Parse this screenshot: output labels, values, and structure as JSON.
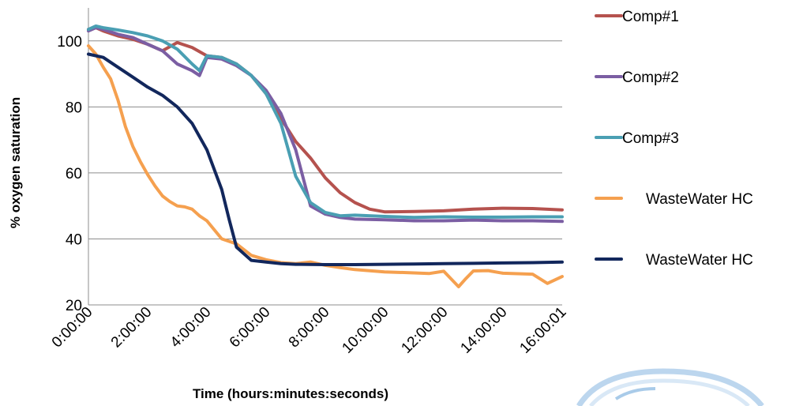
{
  "chart_data": {
    "type": "line",
    "xlabel": "Time (hours:minutes:seconds)",
    "ylabel": "% oxygen saturation",
    "ylim": [
      20,
      110
    ],
    "yticks": [
      20,
      40,
      60,
      80,
      100
    ],
    "xlim_hours": [
      0,
      16
    ],
    "xtick_labels": [
      "0:00:00",
      "2:00:00",
      "4:00:00",
      "6:00:00",
      "8:00:00",
      "10:00:00",
      "12:00:00",
      "14:00:00",
      "16:00:01"
    ],
    "grid": true,
    "legend_position": "right",
    "series": [
      {
        "name": "Comp#1",
        "color": "#b5524e",
        "x": [
          0,
          0.25,
          0.5,
          1,
          1.5,
          2,
          2.5,
          3,
          3.5,
          4,
          4.5,
          5,
          5.5,
          6,
          6.5,
          7,
          7.5,
          8,
          8.5,
          9,
          9.5,
          10,
          11,
          12,
          13,
          14,
          15,
          16
        ],
        "y": [
          103.5,
          104,
          103,
          101.5,
          100.5,
          99,
          97,
          99.5,
          98,
          95.5,
          95,
          93,
          89.5,
          84,
          76.5,
          69.5,
          64.5,
          58.5,
          54,
          51,
          49,
          48.2,
          48.3,
          48.5,
          49,
          49.3,
          49.2,
          48.8
        ]
      },
      {
        "name": "Comp#2",
        "color": "#7b5ea3",
        "x": [
          0,
          0.25,
          0.5,
          1,
          1.5,
          2,
          2.5,
          3,
          3.5,
          3.75,
          4,
          4.5,
          5,
          5.5,
          6,
          6.5,
          7,
          7.5,
          8,
          8.5,
          9,
          10,
          11,
          12,
          13,
          14,
          15,
          16
        ],
        "y": [
          103,
          104,
          103.5,
          102,
          101,
          99,
          97,
          93,
          91,
          89.5,
          95,
          94.5,
          92.5,
          89.5,
          85,
          78,
          67,
          50,
          47.5,
          46.5,
          46,
          45.8,
          45.5,
          45.5,
          45.7,
          45.5,
          45.5,
          45.3
        ]
      },
      {
        "name": "Comp#3",
        "color": "#4a9fb3",
        "x": [
          0,
          0.25,
          0.5,
          1,
          1.5,
          2,
          2.5,
          3,
          3.5,
          3.75,
          4,
          4.5,
          5,
          5.5,
          6,
          6.5,
          7,
          7.5,
          8,
          8.5,
          9,
          10,
          11,
          12,
          13,
          14,
          15,
          16
        ],
        "y": [
          103.5,
          104.5,
          104,
          103.3,
          102.5,
          101.5,
          100,
          97.5,
          93,
          91,
          95.5,
          95,
          93,
          89.5,
          84,
          75,
          59,
          51,
          48,
          47,
          47.2,
          46.8,
          46.5,
          46.7,
          46.6,
          46.6,
          46.7,
          46.7
        ]
      },
      {
        "name": "WasteWater HC",
        "color": "#f5a04f",
        "x": [
          0,
          0.25,
          0.5,
          0.75,
          1,
          1.25,
          1.5,
          1.75,
          2,
          2.25,
          2.5,
          2.75,
          3,
          3.25,
          3.5,
          3.75,
          4,
          4.5,
          5,
          5.5,
          6,
          6.5,
          7,
          7.5,
          8,
          8.5,
          9,
          10,
          11,
          11.5,
          12,
          12.5,
          12.75,
          13,
          13.5,
          14,
          15,
          15.5,
          16
        ],
        "y": [
          98.5,
          96,
          92,
          88.5,
          82,
          74,
          68,
          63.5,
          59.5,
          56,
          53,
          51.3,
          50,
          49.7,
          49,
          47,
          45.5,
          40,
          38.5,
          35,
          33.7,
          32.8,
          32.5,
          33,
          32,
          31.3,
          30.7,
          30,
          29.7,
          29.5,
          30.2,
          25.5,
          28,
          30.3,
          30.4,
          29.6,
          29.3,
          26.5,
          28.6
        ]
      },
      {
        "name": "WasteWater HC",
        "color": "#12275c",
        "x": [
          0,
          0.5,
          1,
          1.5,
          2,
          2.5,
          3,
          3.5,
          4,
          4.25,
          4.5,
          4.75,
          5,
          5.5,
          6,
          6.5,
          7,
          8,
          9,
          10,
          11,
          12,
          13,
          14,
          15,
          16
        ],
        "y": [
          96,
          95,
          92,
          89,
          86,
          83.5,
          80,
          75,
          67,
          61,
          55,
          46,
          37.5,
          33.5,
          33,
          32.5,
          32.3,
          32.2,
          32.2,
          32.3,
          32.4,
          32.5,
          32.6,
          32.7,
          32.8,
          33
        ]
      }
    ]
  },
  "legend": {
    "items": [
      "Comp#1",
      "Comp#2",
      "Comp#3",
      "WasteWater HC",
      "WasteWater HC"
    ]
  }
}
